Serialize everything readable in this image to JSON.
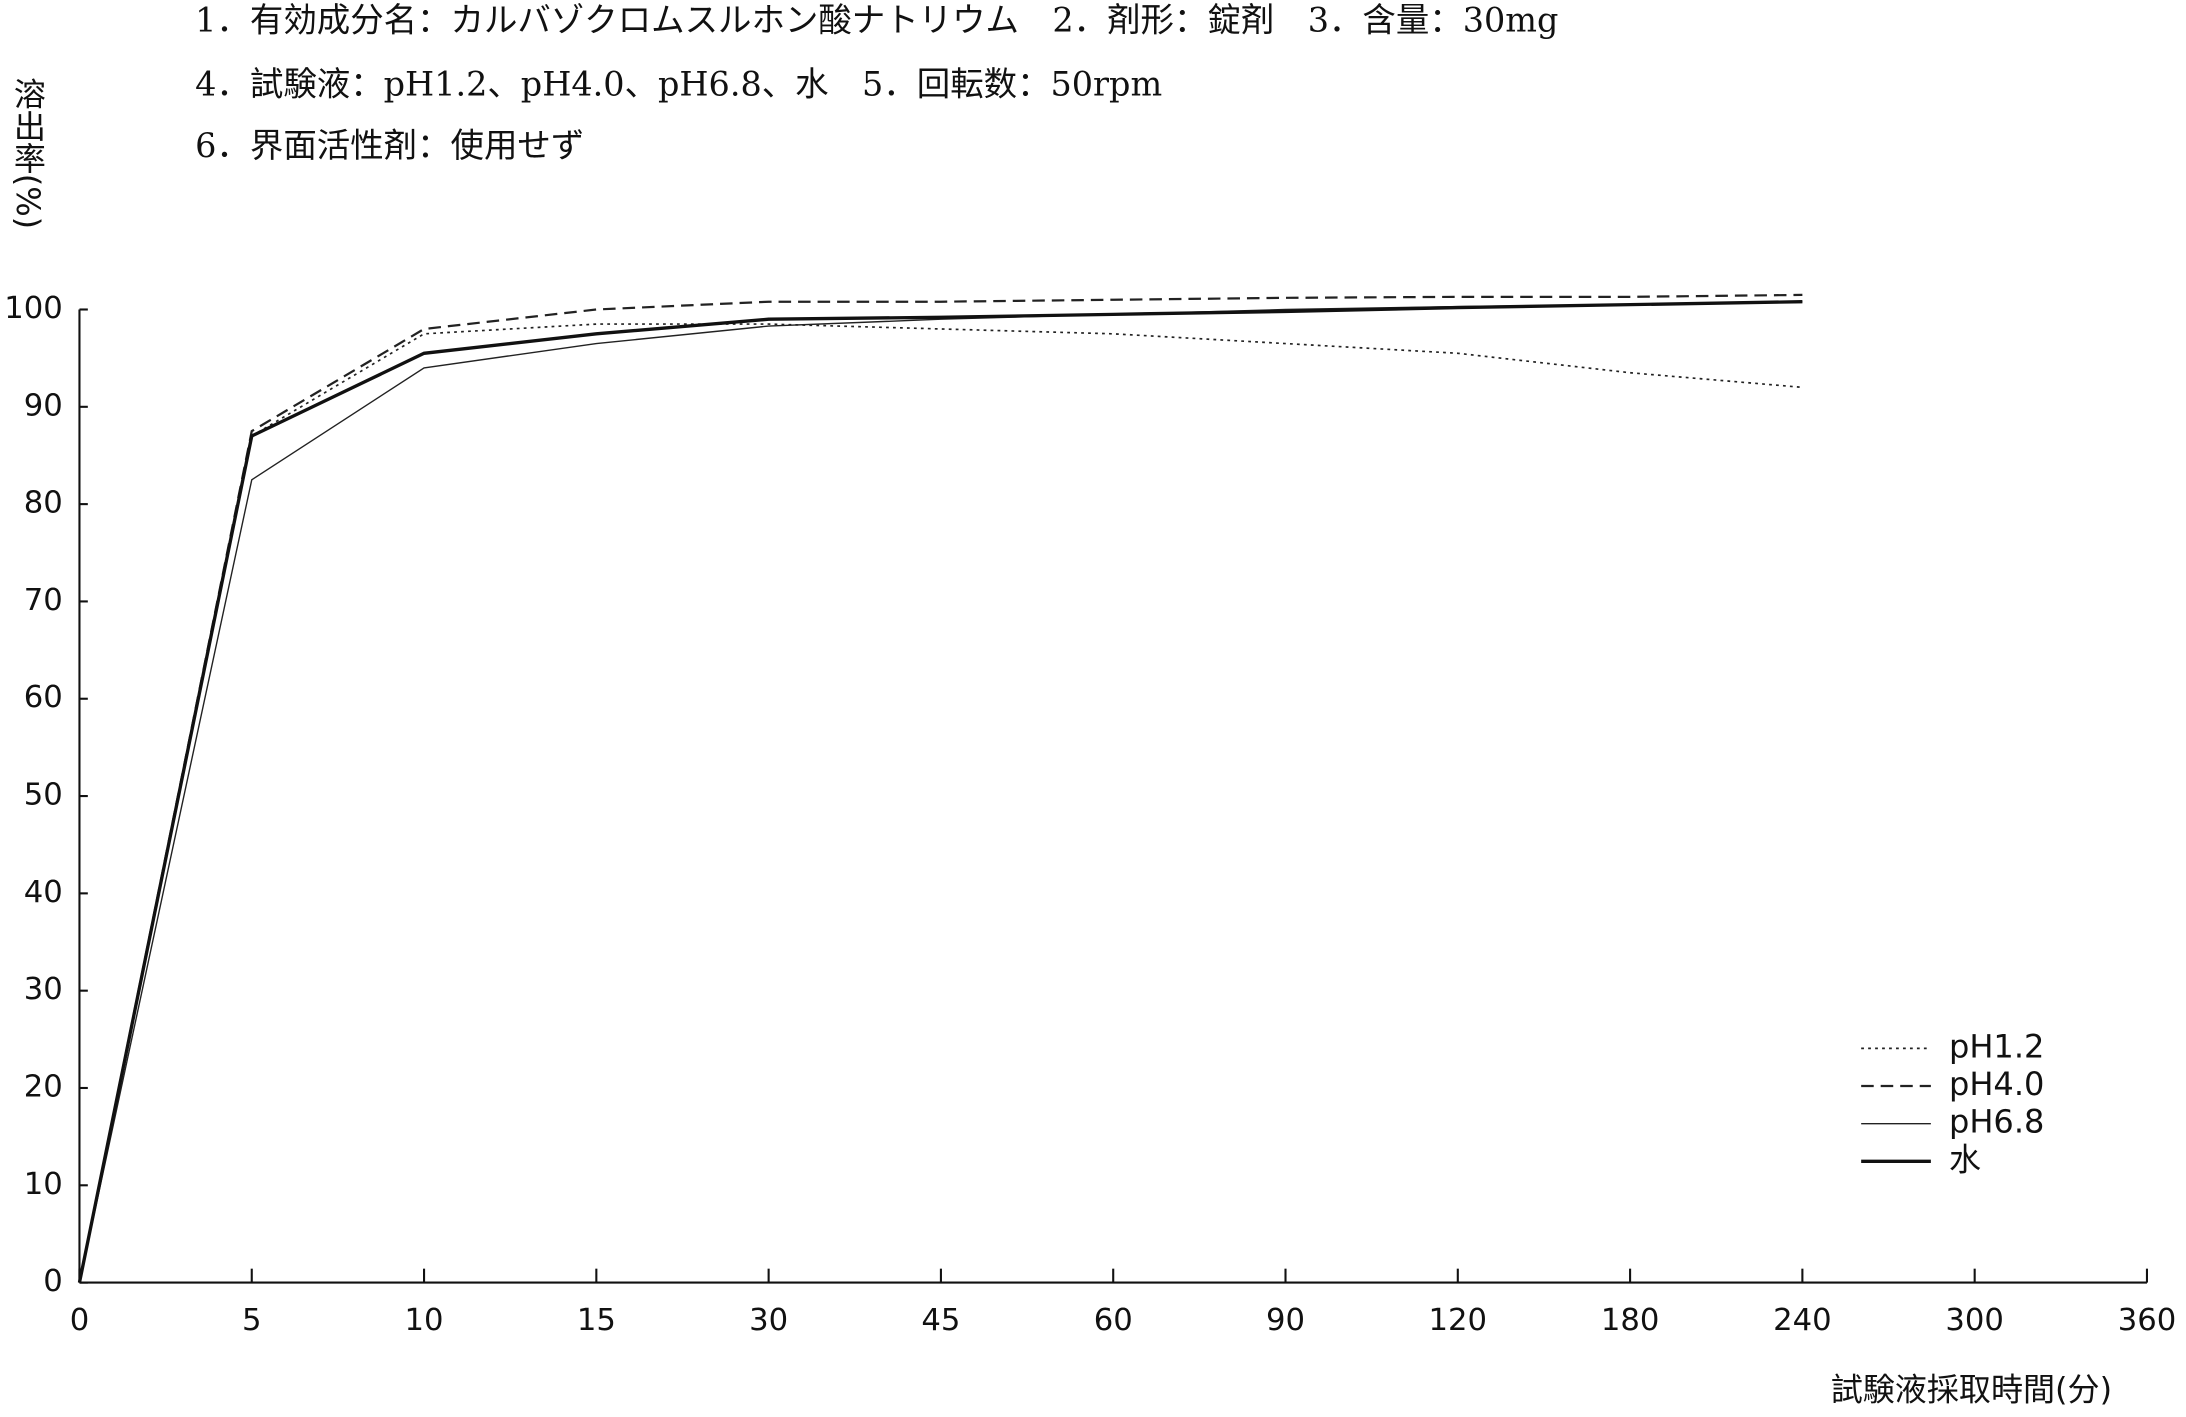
{
  "chart_data": {
    "type": "line",
    "header": [
      "1．有効成分名：カルバゾクロムスルホン酸ナトリウム　2．剤形：錠剤　3．含量：30mg",
      "4．試験液：pH1.2、pH4.0、pH6.8、水　5．回転数：50rpm",
      "6．界面活性剤：使用せず"
    ],
    "y_label": "溶出率(%)",
    "x_label": "試験液採取時間(分)",
    "categories": [
      "0",
      "5",
      "10",
      "15",
      "30",
      "45",
      "60",
      "90",
      "120",
      "180",
      "240",
      "300",
      "360"
    ],
    "series": [
      {
        "name": "pH1.2",
        "color": "#222",
        "style": "dotted",
        "values": [
          0,
          87,
          97.5,
          98.5,
          98.5,
          98,
          97.5,
          96.5,
          95.5,
          93.5,
          92,
          null,
          null
        ]
      },
      {
        "name": "pH4.0",
        "color": "#222",
        "style": "dashed",
        "values": [
          0,
          87.5,
          98,
          100,
          100.8,
          100.8,
          101,
          101.2,
          101.3,
          101.3,
          101.5,
          null,
          null
        ]
      },
      {
        "name": "pH6.8",
        "color": "#222",
        "style": "thin",
        "values": [
          0,
          82.5,
          94,
          96.5,
          98.3,
          99,
          99.5,
          100,
          100.3,
          100.5,
          100.8,
          null,
          null
        ]
      },
      {
        "name": "水",
        "color": "#111",
        "style": "thick",
        "values": [
          0,
          87,
          95.5,
          97.5,
          99,
          99.2,
          99.5,
          99.8,
          100.2,
          100.5,
          100.8,
          null,
          null
        ]
      }
    ],
    "ylim": [
      0,
      100
    ],
    "yticks": [
      0,
      10,
      20,
      30,
      40,
      50,
      60,
      70,
      80,
      90,
      100
    ],
    "legend": "lower right"
  }
}
